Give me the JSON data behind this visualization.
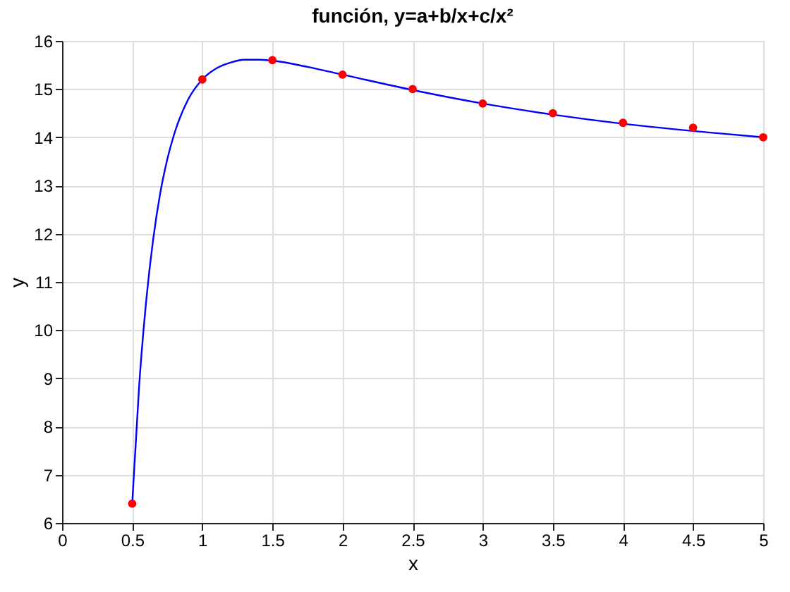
{
  "chart_data": {
    "type": "scatter",
    "title": "función, y=a+b/x+c/x²",
    "xlabel": "x",
    "ylabel": "y",
    "xlim": [
      0,
      5
    ],
    "ylim": [
      6,
      16
    ],
    "xticks": [
      0,
      0.5,
      1,
      1.5,
      2,
      2.5,
      3,
      3.5,
      4,
      4.5,
      5
    ],
    "yticks": [
      6,
      7,
      8,
      9,
      10,
      11,
      12,
      13,
      14,
      15,
      16
    ],
    "grid": true,
    "series": [
      {
        "type": "line",
        "color": "#0000ff",
        "marker": "none",
        "line_style": "solid",
        "x": [
          0.5,
          0.55,
          0.6,
          0.65,
          0.7,
          0.75,
          0.8,
          0.9,
          1.0,
          1.1,
          1.2,
          1.3,
          1.4,
          1.5,
          1.75,
          2,
          2.5,
          3,
          3.5,
          4,
          4.5,
          5
        ],
        "values": [
          6.4,
          8.86,
          10.61,
          11.89,
          12.84,
          13.54,
          14.07,
          14.79,
          15.2,
          15.43,
          15.55,
          15.61,
          15.61,
          15.59,
          15.46,
          15.3,
          14.98,
          14.7,
          14.47,
          14.28,
          14.13,
          14.0
        ]
      },
      {
        "color": "#ff0000",
        "marker": "circle",
        "x": [
          0.5,
          1,
          1.5,
          2,
          2.5,
          3,
          3.5,
          4,
          4.5,
          5
        ],
        "values": [
          6.4,
          15.2,
          15.6,
          15.3,
          15.0,
          14.7,
          14.5,
          14.3,
          14.2,
          14.0
        ]
      }
    ]
  }
}
